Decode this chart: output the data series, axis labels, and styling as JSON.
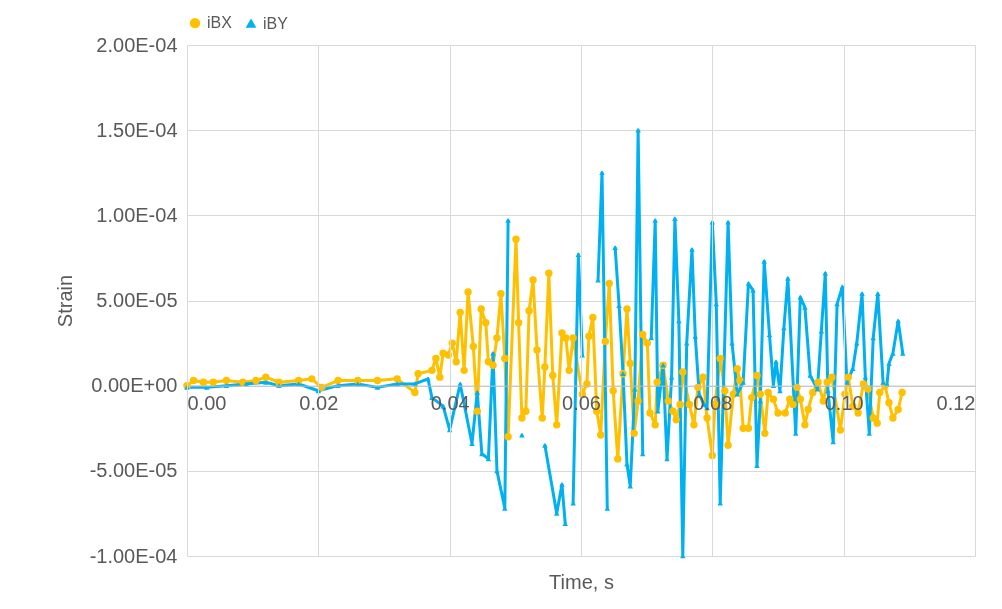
{
  "chart_data": {
    "type": "line",
    "xlabel": "Time, s",
    "ylabel": "Strain",
    "xlim": [
      0,
      0.12
    ],
    "xticks": [
      {
        "value": 0,
        "label": "0.00"
      },
      {
        "value": 0.02,
        "label": "0.02"
      },
      {
        "value": 0.04,
        "label": "0.04"
      },
      {
        "value": 0.06,
        "label": "0.06"
      },
      {
        "value": 0.08,
        "label": "0.08"
      },
      {
        "value": 0.1,
        "label": "0.10"
      },
      {
        "value": 0.12,
        "label": "0.12"
      }
    ],
    "ylim": [
      -0.0001,
      0.0002
    ],
    "yticks": [
      {
        "value": -0.0001,
        "label": "-1.00E-04"
      },
      {
        "value": -5e-05,
        "label": "-5.00E-05"
      },
      {
        "value": 0,
        "label": "0.00E+00"
      },
      {
        "value": 5e-05,
        "label": "5.00E-05"
      },
      {
        "value": 0.0001,
        "label": "1.00E-04"
      },
      {
        "value": 0.00015,
        "label": "1.50E-04"
      },
      {
        "value": 0.0002,
        "label": "2.00E-04"
      }
    ],
    "grid": true,
    "legend": "top",
    "series": [
      {
        "name": "iBX",
        "color": "#ffc000",
        "marker": "circle",
        "x": [
          0,
          0.001,
          0.0025,
          0.004,
          0.006,
          0.0085,
          0.0105,
          0.012,
          0.014,
          0.017,
          0.019,
          0.0205,
          0.023,
          0.026,
          0.029,
          0.032,
          0.0347,
          0.0352,
          0.0373,
          0.0379,
          0.0385,
          0.039,
          0.0398,
          0.0404,
          0.041,
          0.0416,
          0.0422,
          0.0428,
          0.0436,
          0.0442,
          0.0448,
          0.0455,
          0.0459,
          0.0466,
          0.0472,
          0.0478,
          0.0484,
          0.0489,
          0.0501,
          0.0505,
          0.051,
          0.0516,
          0.0521,
          0.0527,
          0.0533,
          0.0541,
          0.0545,
          0.0551,
          0.0557,
          0.0563,
          0.0571,
          0.0577,
          0.0582,
          0.0588,
          0.0602,
          0.0609,
          0.0612,
          0.0618,
          0.0624,
          0.063,
          0.0637,
          0.0643,
          0.0649,
          0.0656,
          0.0664,
          0.067,
          0.0675,
          0.0681,
          0.0687,
          0.0694,
          0.0701,
          0.0705,
          0.0713,
          0.0716,
          0.0725,
          0.0733,
          0.074,
          0.0745,
          0.0751,
          0.0755,
          0.0765,
          0.0772,
          0.0778,
          0.0786,
          0.0792,
          0.08,
          0.0804,
          0.0812,
          0.0819,
          0.0824,
          0.0832,
          0.0838,
          0.0842,
          0.0847,
          0.0855,
          0.086,
          0.0868,
          0.0873,
          0.088,
          0.0885,
          0.0893,
          0.09,
          0.0911,
          0.0918,
          0.0923,
          0.0929,
          0.0934,
          0.0941,
          0.0946,
          0.0953,
          0.0961,
          0.0969,
          0.0975,
          0.0982,
          0.0995,
          0.1002,
          0.1007,
          0.1014,
          0.1022,
          0.103,
          0.1037,
          0.1045,
          0.1051,
          0.1055,
          0.1063,
          0.1069,
          0.1075,
          0.1083,
          0.1089
        ],
        "values": [
          0,
          3e-06,
          2e-06,
          2e-06,
          3e-06,
          2e-06,
          3e-06,
          5e-06,
          2e-06,
          3e-06,
          4e-06,
          -1e-06,
          3e-06,
          3e-06,
          3e-06,
          4e-06,
          -4e-06,
          7e-06,
          9e-06,
          1.6e-05,
          5e-06,
          1.9e-05,
          1.8e-05,
          2.5e-05,
          1.4e-05,
          4.3e-05,
          9e-06,
          5.5e-05,
          2.3e-05,
          -1.5e-05,
          4.5e-05,
          3.7e-05,
          1.4e-05,
          1.2e-05,
          2.8e-05,
          5.4e-05,
          1.6e-05,
          -3e-05,
          8.6e-05,
          3.7e-05,
          -1.9e-05,
          -1.5e-05,
          4.4e-05,
          6.2e-05,
          2.1e-05,
          -1.9e-05,
          1.1e-05,
          6.6e-05,
          6e-06,
          -2.3e-05,
          3.1e-05,
          2.8e-05,
          9e-06,
          2.8e-05,
          -5e-06,
          1e-06,
          2.9e-05,
          4e-05,
          -1.5e-05,
          -2.9e-05,
          2.6e-05,
          6e-05,
          -3e-06,
          -4.3e-05,
          7e-06,
          4.5e-05,
          1.3e-05,
          -2.8e-05,
          -9e-06,
          3e-05,
          2.5e-05,
          -1.6e-05,
          -2.3e-05,
          2e-06,
          1.2e-05,
          -9e-06,
          -1.5e-05,
          -2e-05,
          -1.1e-05,
          8e-06,
          -1.1e-05,
          -2.3e-05,
          -1e-06,
          5e-06,
          -1.9e-05,
          -4.1e-05,
          -1.1e-05,
          1.6e-05,
          -3e-06,
          -3.5e-05,
          -5e-06,
          1e-05,
          3e-06,
          -2.5e-05,
          -2.5e-05,
          -7e-06,
          6e-06,
          -5e-06,
          -2.8e-05,
          -4e-06,
          -8e-06,
          -1.6e-05,
          -1.6e-05,
          -8e-06,
          -1.1e-05,
          -1e-06,
          -8e-06,
          -2.3e-05,
          -1.4e-05,
          -4e-06,
          2e-06,
          -9e-06,
          2e-06,
          5e-06,
          -2.6e-05,
          -5e-06,
          5e-06,
          -1.2e-05,
          -1.6e-05,
          1e-06,
          -2e-06,
          -1.9e-05,
          -2.2e-05,
          -4e-06,
          0,
          -1e-05,
          -1.9e-05,
          -1.4e-05,
          -4e-06
        ]
      },
      {
        "name": "iBY",
        "color": "#00b0f0",
        "marker": "triangle",
        "x": [
          0,
          0.003,
          0.006,
          0.009,
          0.012,
          0.014,
          0.017,
          0.02,
          0.023,
          0.026,
          0.029,
          0.032,
          0.0347,
          0.0367,
          0.0373,
          0.039,
          0.04,
          0.0416,
          0.0434,
          0.0442,
          0.0449,
          0.0459,
          0.0466,
          0.0472,
          0.0484,
          0.0489,
          0.0496,
          0.051,
          0.0528,
          0.0545,
          0.0563,
          0.0571,
          0.0576,
          0.0582,
          0.0588,
          0.0596,
          0.0602,
          0.0614,
          0.0626,
          0.0632,
          0.064,
          0.0646,
          0.0652,
          0.0658,
          0.0664,
          0.067,
          0.0675,
          0.0682,
          0.0687,
          0.0694,
          0.07,
          0.0707,
          0.0713,
          0.0717,
          0.0725,
          0.0731,
          0.0738,
          0.0743,
          0.0749,
          0.0755,
          0.0761,
          0.0769,
          0.0774,
          0.078,
          0.0787,
          0.0792,
          0.08,
          0.0806,
          0.0812,
          0.0824,
          0.083,
          0.0838,
          0.0847,
          0.0855,
          0.0862,
          0.0868,
          0.0873,
          0.0879,
          0.0887,
          0.0893,
          0.0897,
          0.0903,
          0.0909,
          0.0915,
          0.0927,
          0.0934,
          0.0941,
          0.0949,
          0.096,
          0.0966,
          0.0972,
          0.0976,
          0.0984,
          0.099,
          0.0998,
          0.1005,
          0.1014,
          0.102,
          0.1028,
          0.1033,
          0.1039,
          0.1045,
          0.1052,
          0.106,
          0.1066,
          0.1069,
          0.1075,
          0.1083,
          0.109
        ],
        "values": [
          -1e-06,
          -1e-06,
          0,
          1e-06,
          2e-06,
          0,
          1e-06,
          -3e-06,
          0,
          1e-06,
          -1e-06,
          1e-06,
          1e-06,
          4e-06,
          -7e-06,
          -1.2e-05,
          -2.6e-05,
          1e-06,
          -3.4e-05,
          -4e-06,
          -4e-05,
          -4.3e-05,
          1.9e-05,
          -5e-05,
          -7.2e-05,
          9.7e-05,
          null,
          -2.9e-05,
          null,
          -3.5e-05,
          -7.5e-05,
          -5.8e-05,
          -8.1e-05,
          null,
          -6.9e-05,
          7.7e-05,
          1.8e-05,
          null,
          6.2e-05,
          0.000125,
          -7.2e-05,
          null,
          8.1e-05,
          4.7e-05,
          7e-06,
          -4.6e-05,
          -5.9e-05,
          -2e-06,
          0.00015,
          -4e-05,
          null,
          2.8e-05,
          9.7e-05,
          -1.5e-05,
          1.2e-05,
          -4.3e-05,
          5e-06,
          9.8e-05,
          3.8e-05,
          -0.0001,
          2.5e-05,
          8e-05,
          2.9e-05,
          -5e-06,
          -1.1e-05,
          -1.3e-05,
          9.6e-05,
          4.8e-05,
          -6.9e-05,
          9.6e-05,
          2.5e-05,
          -5e-06,
          2e-06,
          6e-05,
          5.6e-05,
          -4.7e-05,
          -9e-06,
          7.3e-05,
          3e-05,
          0,
          1.4e-05,
          -3e-06,
          3.4e-05,
          6.3e-05,
          -2.8e-05,
          5.2e-05,
          4.6e-05,
          6e-06,
          -2e-06,
          3.2e-05,
          6.6e-05,
          -3e-06,
          -3.3e-05,
          4.8e-05,
          5.8e-05,
          2e-06,
          1e-05,
          2.5e-05,
          5.4e-05,
          5e-06,
          -2.8e-05,
          2.8e-05,
          5.4e-05,
          2e-06,
          1e-06,
          1.3e-05,
          1.9e-05,
          3.8e-05,
          1.9e-05
        ]
      }
    ]
  }
}
